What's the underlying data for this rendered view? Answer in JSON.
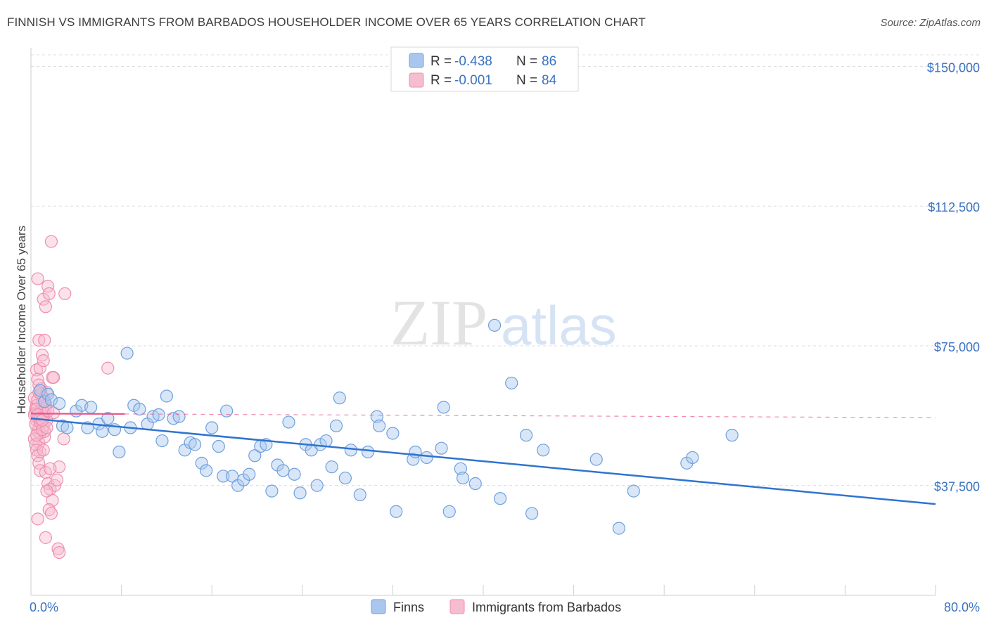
{
  "header": {
    "title": "FINNISH VS IMMIGRANTS FROM BARBADOS HOUSEHOLDER INCOME OVER 65 YEARS CORRELATION CHART",
    "source": "Source: ZipAtlas.com"
  },
  "watermark": {
    "zip": "ZIP",
    "atlas": "atlas"
  },
  "colors": {
    "finns_fill": "#a9c7ee",
    "finns_stroke": "#6fa0de",
    "finns_line": "#2f74d0",
    "barbados_fill": "#f6bdd0",
    "barbados_stroke": "#ee8fb0",
    "barbados_line": "#e8578b",
    "grid": "#dddddd",
    "axis_label": "#3a72c2"
  },
  "legend": {
    "r_label": "R =",
    "n_label": "N =",
    "finns": {
      "r": "-0.438",
      "n": "86"
    },
    "barbados": {
      "r": "-0.001",
      "n": "84"
    }
  },
  "chart_data": {
    "type": "scatter",
    "title": "FINNISH VS IMMIGRANTS FROM BARBADOS HOUSEHOLDER INCOME OVER 65 YEARS CORRELATION CHART",
    "xlabel": "",
    "ylabel": "Householder Income Over 65 years",
    "xlim": [
      0,
      80
    ],
    "ylim": [
      8000,
      155000
    ],
    "x_tick_labels": [
      "0.0%",
      "80.0%"
    ],
    "y_ticks": [
      37500,
      75000,
      112500,
      150000
    ],
    "y_tick_labels": [
      "$37,500",
      "$75,000",
      "$112,500",
      "$150,000"
    ],
    "grid": true,
    "series": [
      {
        "name": "Finns",
        "r": -0.438,
        "n": 86,
        "trend": {
          "x": [
            0,
            80
          ],
          "y": [
            55500,
            32500
          ]
        },
        "points": [
          [
            0.8,
            63000
          ],
          [
            1.2,
            60000
          ],
          [
            1.5,
            62000
          ],
          [
            1.8,
            60500
          ],
          [
            2.5,
            59500
          ],
          [
            2.8,
            53500
          ],
          [
            3.2,
            53000
          ],
          [
            4.0,
            57500
          ],
          [
            4.5,
            59000
          ],
          [
            5.0,
            53000
          ],
          [
            5.3,
            58500
          ],
          [
            6.0,
            54000
          ],
          [
            6.3,
            52000
          ],
          [
            6.8,
            55500
          ],
          [
            7.4,
            52500
          ],
          [
            7.8,
            46500
          ],
          [
            8.5,
            73000
          ],
          [
            8.8,
            53000
          ],
          [
            9.1,
            59000
          ],
          [
            9.6,
            58000
          ],
          [
            10.3,
            54000
          ],
          [
            10.8,
            56000
          ],
          [
            11.3,
            56500
          ],
          [
            11.6,
            49500
          ],
          [
            12.0,
            61500
          ],
          [
            12.6,
            55500
          ],
          [
            13.1,
            56000
          ],
          [
            13.6,
            47000
          ],
          [
            14.1,
            49000
          ],
          [
            14.5,
            48500
          ],
          [
            15.1,
            43500
          ],
          [
            15.5,
            41500
          ],
          [
            16.0,
            53000
          ],
          [
            16.6,
            48000
          ],
          [
            17.0,
            40000
          ],
          [
            17.3,
            57500
          ],
          [
            17.8,
            40000
          ],
          [
            18.3,
            37500
          ],
          [
            18.8,
            39000
          ],
          [
            19.3,
            40500
          ],
          [
            19.8,
            45500
          ],
          [
            20.3,
            48000
          ],
          [
            20.8,
            48500
          ],
          [
            21.3,
            36000
          ],
          [
            21.8,
            43000
          ],
          [
            22.3,
            41500
          ],
          [
            22.8,
            54500
          ],
          [
            23.3,
            40500
          ],
          [
            23.8,
            35500
          ],
          [
            24.3,
            48500
          ],
          [
            24.8,
            47000
          ],
          [
            25.3,
            37500
          ],
          [
            25.6,
            48500
          ],
          [
            26.1,
            49500
          ],
          [
            26.6,
            42500
          ],
          [
            27.0,
            53500
          ],
          [
            27.3,
            61000
          ],
          [
            27.8,
            39500
          ],
          [
            28.3,
            47000
          ],
          [
            29.1,
            35000
          ],
          [
            29.8,
            46500
          ],
          [
            30.6,
            56000
          ],
          [
            30.8,
            53500
          ],
          [
            32.0,
            51500
          ],
          [
            32.3,
            30500
          ],
          [
            33.8,
            44500
          ],
          [
            34.0,
            46500
          ],
          [
            35.0,
            45000
          ],
          [
            36.3,
            47500
          ],
          [
            37.0,
            30500
          ],
          [
            36.5,
            58500
          ],
          [
            38.0,
            42000
          ],
          [
            38.2,
            39500
          ],
          [
            39.3,
            38000
          ],
          [
            41.0,
            80500
          ],
          [
            41.5,
            34000
          ],
          [
            42.5,
            65000
          ],
          [
            43.8,
            51000
          ],
          [
            44.3,
            30000
          ],
          [
            45.3,
            47000
          ],
          [
            50.0,
            44500
          ],
          [
            52.0,
            26000
          ],
          [
            53.3,
            36000
          ],
          [
            58.0,
            43500
          ],
          [
            58.5,
            45000
          ],
          [
            62.0,
            51000
          ]
        ]
      },
      {
        "name": "Immigrants from Barbados",
        "r": -0.001,
        "n": 84,
        "trend": {
          "x": [
            0,
            8.3
          ],
          "y": [
            56800,
            56700
          ]
        },
        "trend_extended": {
          "x": [
            8.3,
            80
          ],
          "y": [
            56700,
            55700
          ]
        },
        "points": [
          [
            0.3,
            61000
          ],
          [
            0.4,
            58000
          ],
          [
            0.5,
            55000
          ],
          [
            0.6,
            52000
          ],
          [
            0.7,
            49000
          ],
          [
            0.8,
            46500
          ],
          [
            0.9,
            63500
          ],
          [
            1.0,
            56000
          ],
          [
            1.1,
            53500
          ],
          [
            1.2,
            50500
          ],
          [
            1.3,
            59500
          ],
          [
            1.4,
            62500
          ],
          [
            0.5,
            68500
          ],
          [
            0.6,
            66000
          ],
          [
            0.7,
            64500
          ],
          [
            0.8,
            69000
          ],
          [
            1.0,
            72500
          ],
          [
            1.1,
            71000
          ],
          [
            0.7,
            76500
          ],
          [
            1.2,
            76500
          ],
          [
            0.6,
            93000
          ],
          [
            1.5,
            91000
          ],
          [
            1.1,
            87500
          ],
          [
            1.3,
            85500
          ],
          [
            1.6,
            89000
          ],
          [
            3.0,
            89000
          ],
          [
            1.8,
            103000
          ],
          [
            1.9,
            66500
          ],
          [
            2.0,
            66500
          ],
          [
            0.4,
            57000
          ],
          [
            0.5,
            59000
          ],
          [
            0.6,
            55500
          ],
          [
            0.7,
            53000
          ],
          [
            0.8,
            51500
          ],
          [
            0.9,
            57500
          ],
          [
            1.0,
            60000
          ],
          [
            1.1,
            61000
          ],
          [
            1.2,
            52000
          ],
          [
            0.3,
            50000
          ],
          [
            0.4,
            48500
          ],
          [
            0.5,
            47000
          ],
          [
            0.6,
            45500
          ],
          [
            0.7,
            43500
          ],
          [
            0.8,
            41500
          ],
          [
            1.1,
            47000
          ],
          [
            1.3,
            41000
          ],
          [
            1.5,
            38000
          ],
          [
            1.7,
            36500
          ],
          [
            1.9,
            33500
          ],
          [
            2.1,
            37500
          ],
          [
            2.3,
            39000
          ],
          [
            1.6,
            31000
          ],
          [
            1.8,
            30000
          ],
          [
            0.6,
            28500
          ],
          [
            1.3,
            23500
          ],
          [
            2.4,
            20500
          ],
          [
            2.5,
            19500
          ],
          [
            2.5,
            42500
          ],
          [
            2.9,
            50000
          ],
          [
            6.8,
            69000
          ],
          [
            0.9,
            62000
          ],
          [
            1.0,
            58500
          ],
          [
            1.2,
            57000
          ],
          [
            1.4,
            55000
          ],
          [
            0.3,
            56500
          ],
          [
            0.4,
            54000
          ],
          [
            0.5,
            51000
          ],
          [
            0.6,
            60500
          ],
          [
            0.7,
            62500
          ],
          [
            0.8,
            54500
          ],
          [
            0.9,
            57000
          ],
          [
            1.0,
            52500
          ],
          [
            1.1,
            56000
          ],
          [
            1.3,
            58500
          ],
          [
            1.4,
            53000
          ],
          [
            0.5,
            58000
          ],
          [
            0.6,
            56500
          ],
          [
            0.8,
            55500
          ],
          [
            1.0,
            55000
          ],
          [
            1.2,
            60000
          ],
          [
            1.5,
            57500
          ],
          [
            2.0,
            57000
          ],
          [
            1.7,
            42000
          ],
          [
            1.4,
            36000
          ]
        ]
      }
    ]
  },
  "bottom_legend": {
    "finns": "Finns",
    "barbados": "Immigrants from Barbados"
  }
}
